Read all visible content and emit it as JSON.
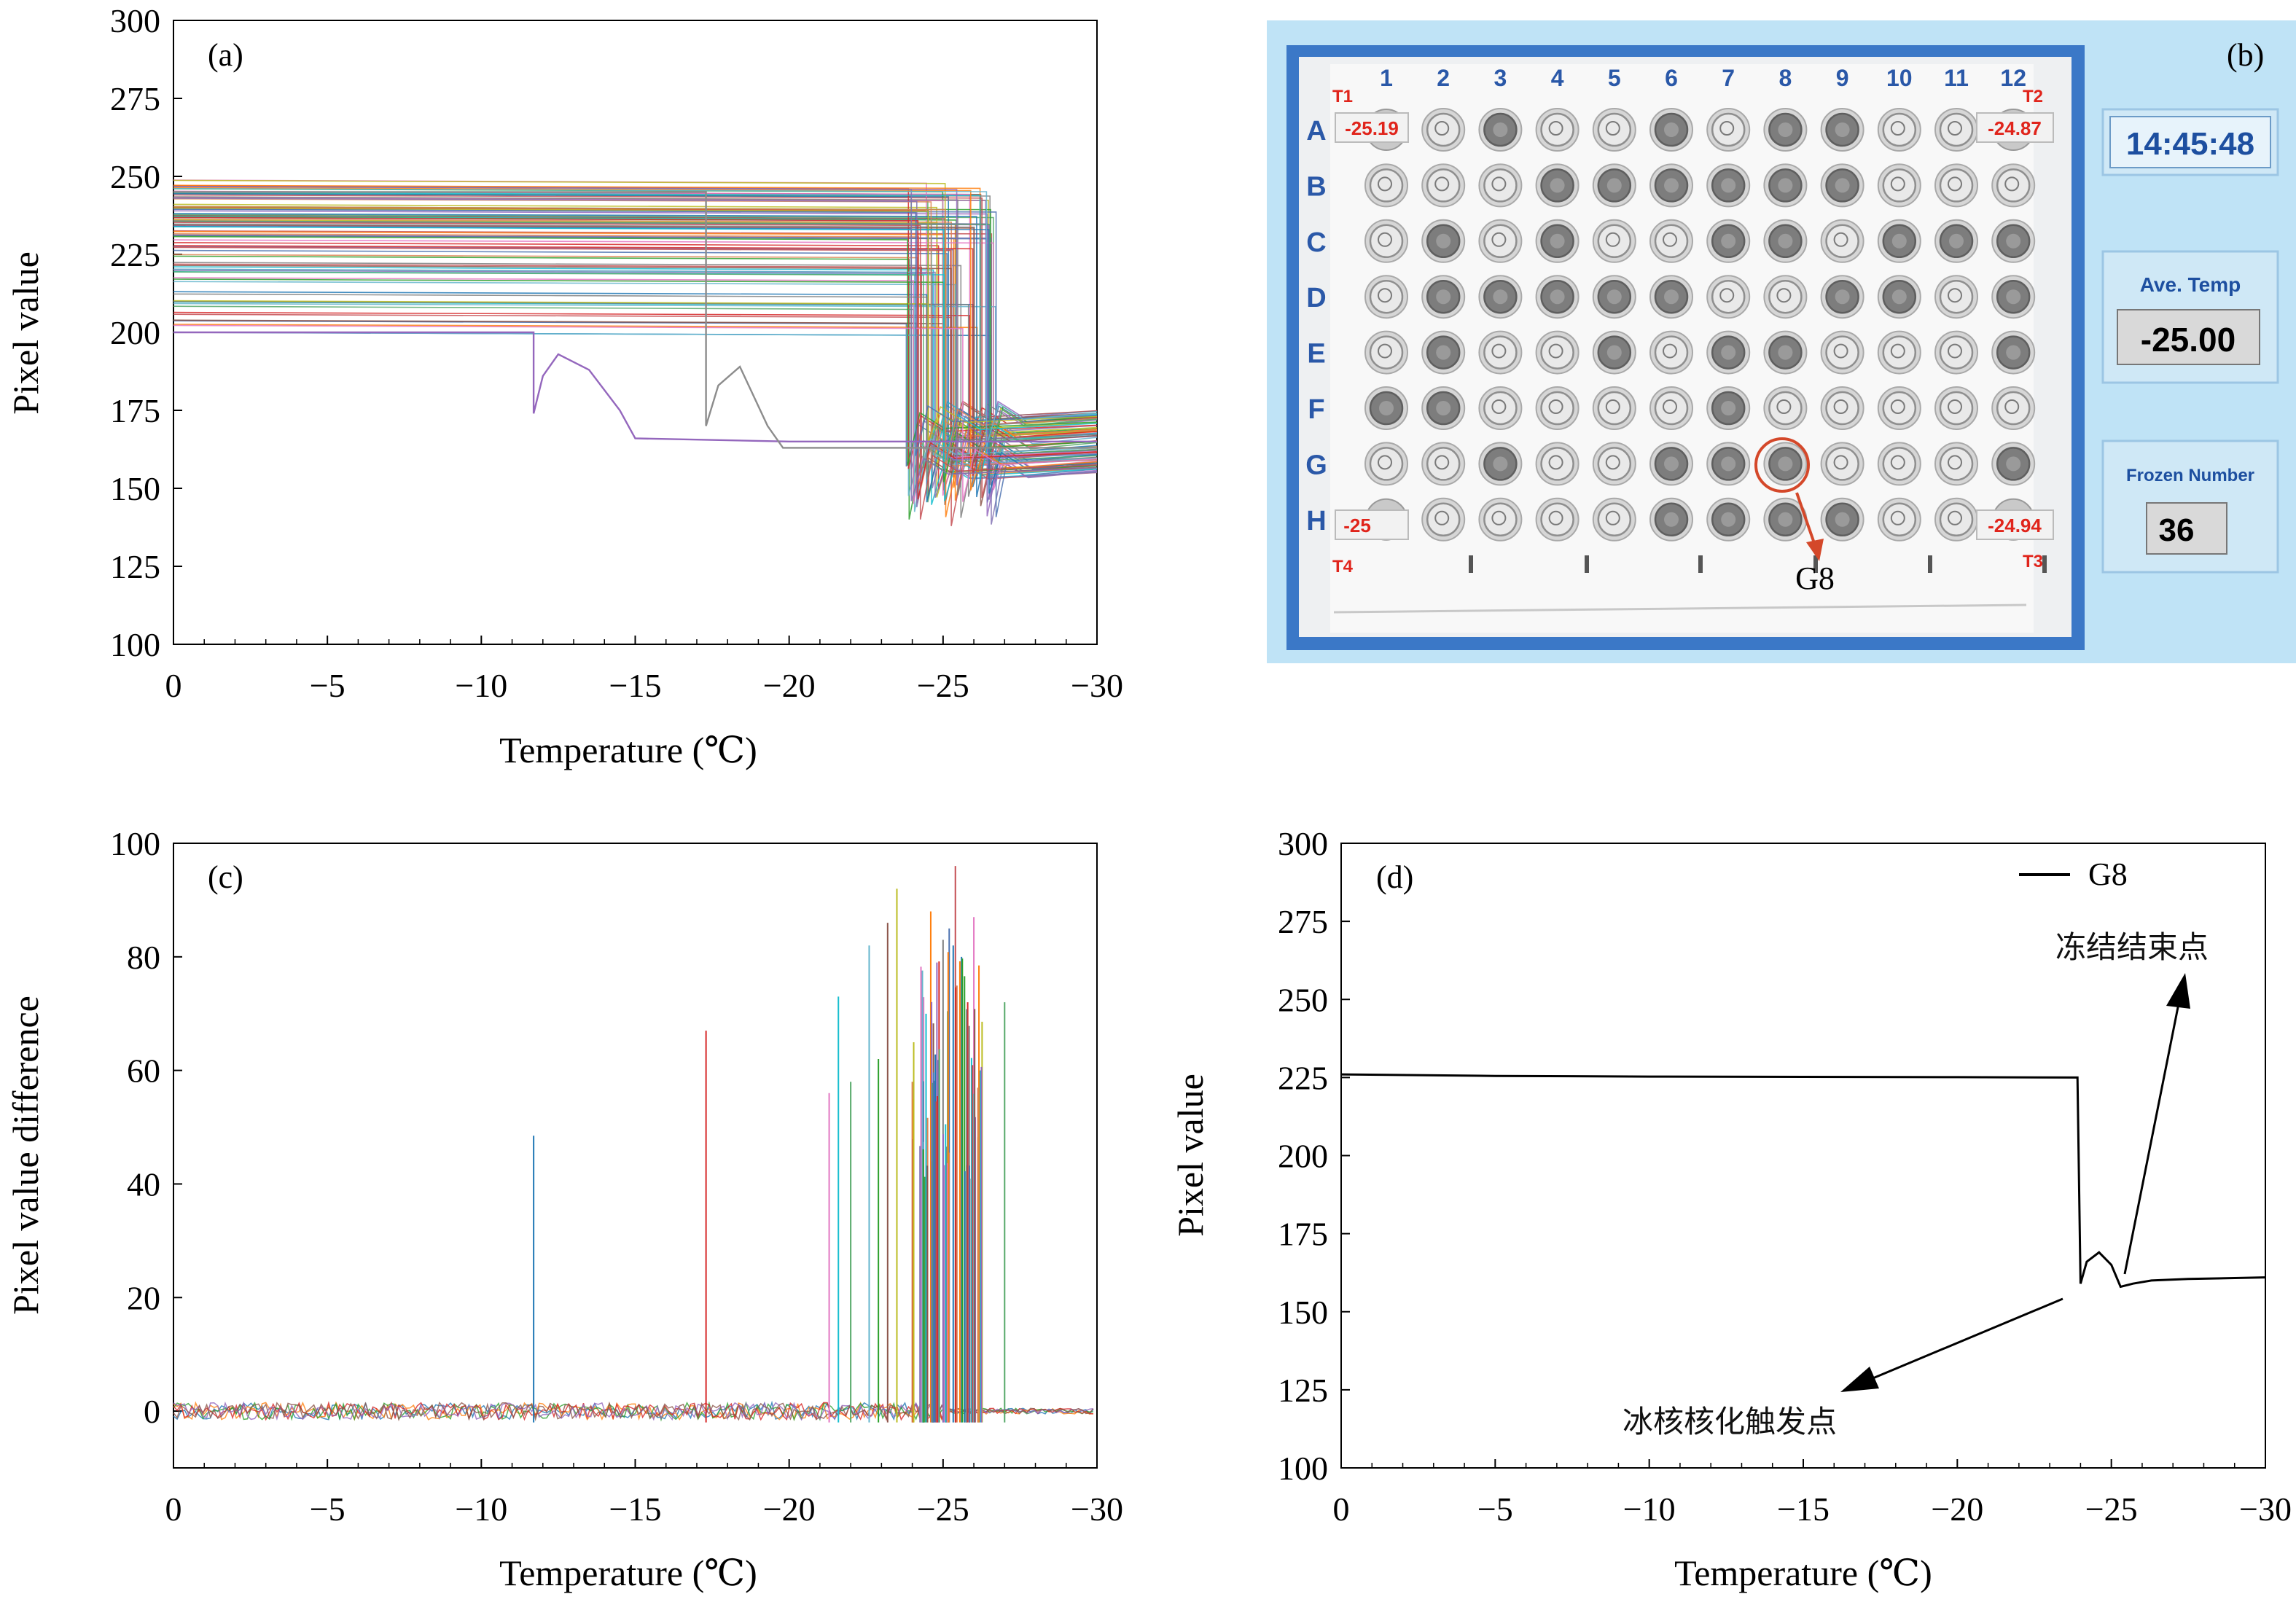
{
  "chart_data": [
    {
      "id": "a",
      "type": "line",
      "panel_label": "(a)",
      "xlabel": "Temperature (℃)",
      "ylabel": "Pixel value",
      "xlim": [
        0,
        -30
      ],
      "ylim": [
        100,
        300
      ],
      "x_ticks": [
        0,
        -5,
        -10,
        -15,
        -20,
        -25,
        -30
      ],
      "x_tick_labels": [
        "0",
        "−5",
        "−10",
        "−15",
        "−20",
        "−25",
        "−30"
      ],
      "y_ticks": [
        100,
        125,
        150,
        175,
        200,
        225,
        250,
        275,
        300
      ],
      "y_tick_labels": [
        "100",
        "125",
        "150",
        "175",
        "200",
        "225",
        "250",
        "275",
        "300"
      ],
      "series_summary": {
        "count": 96,
        "initial_range": [
          200,
          249
        ],
        "freeze_range": [
          -21.2,
          -26.9
        ],
        "final_range": [
          150,
          175
        ]
      },
      "highlight_series": [
        {
          "name": "purple",
          "points": [
            [
              0,
              200
            ],
            [
              -11.7,
              200
            ],
            [
              -11.7,
              174
            ],
            [
              -12.0,
              186
            ],
            [
              -12.5,
              193
            ],
            [
              -13.5,
              188
            ],
            [
              -14.5,
              175
            ],
            [
              -15,
              166
            ],
            [
              -20,
              165
            ],
            [
              -30,
              165
            ]
          ]
        },
        {
          "name": "grey",
          "points": [
            [
              0,
              245
            ],
            [
              -17.3,
              245
            ],
            [
              -17.3,
              170
            ],
            [
              -17.7,
              183
            ],
            [
              -18.4,
              189
            ],
            [
              -19.3,
              170
            ],
            [
              -19.8,
              163
            ],
            [
              -30,
              163
            ]
          ]
        }
      ]
    },
    {
      "id": "c",
      "type": "line",
      "panel_label": "(c)",
      "xlabel": "Temperature (℃)",
      "ylabel": "Pixel value difference",
      "xlim": [
        0,
        -30
      ],
      "ylim": [
        -10,
        100
      ],
      "x_ticks": [
        0,
        -5,
        -10,
        -15,
        -20,
        -25,
        -30
      ],
      "x_tick_labels": [
        "0",
        "−5",
        "−10",
        "−15",
        "−20",
        "−25",
        "−30"
      ],
      "y_ticks": [
        0,
        20,
        40,
        60,
        80,
        100
      ],
      "y_tick_labels": [
        "0",
        "20",
        "40",
        "60",
        "80",
        "100"
      ],
      "spikes": [
        {
          "x": -11.7,
          "y": 48.5
        },
        {
          "x": -17.3,
          "y": 67
        },
        {
          "x": -21.3,
          "y": 56
        },
        {
          "x": -21.6,
          "y": 73
        },
        {
          "x": -22.0,
          "y": 58
        },
        {
          "x": -22.6,
          "y": 82
        },
        {
          "x": -22.9,
          "y": 62
        },
        {
          "x": -23.2,
          "y": 86
        },
        {
          "x": -23.5,
          "y": 92
        },
        {
          "x": -24.0,
          "y": 58
        },
        {
          "x": -24.3,
          "y": 75
        },
        {
          "x": -24.6,
          "y": 88
        },
        {
          "x": -24.8,
          "y": 79
        },
        {
          "x": -25.0,
          "y": 83
        },
        {
          "x": -25.2,
          "y": 85
        },
        {
          "x": -25.4,
          "y": 96
        },
        {
          "x": -25.6,
          "y": 80
        },
        {
          "x": -25.8,
          "y": 72
        },
        {
          "x": -26.0,
          "y": 87
        },
        {
          "x": -26.2,
          "y": 60
        },
        {
          "x": -27.0,
          "y": 72
        }
      ]
    },
    {
      "id": "d",
      "type": "line",
      "panel_label": "(d)",
      "xlabel": "Temperature (℃)",
      "ylabel": "Pixel value",
      "xlim": [
        0,
        -30
      ],
      "ylim": [
        100,
        300
      ],
      "x_ticks": [
        0,
        -5,
        -10,
        -15,
        -20,
        -25,
        -30
      ],
      "x_tick_labels": [
        "0",
        "−5",
        "−10",
        "−15",
        "−20",
        "−25",
        "−30"
      ],
      "y_ticks": [
        100,
        125,
        150,
        175,
        200,
        225,
        250,
        275,
        300
      ],
      "y_tick_labels": [
        "100",
        "125",
        "150",
        "175",
        "200",
        "225",
        "250",
        "275",
        "300"
      ],
      "legend": "G8",
      "series": [
        {
          "name": "G8",
          "points": [
            [
              0,
              226
            ],
            [
              -5,
              225.5
            ],
            [
              -10,
              225.3
            ],
            [
              -15,
              225.2
            ],
            [
              -20,
              225.1
            ],
            [
              -23.9,
              225
            ],
            [
              -24.0,
              159
            ],
            [
              -24.2,
              166
            ],
            [
              -24.6,
              169
            ],
            [
              -25.0,
              165
            ],
            [
              -25.3,
              158
            ],
            [
              -25.7,
              159
            ],
            [
              -26.3,
              160
            ],
            [
              -27.5,
              160.5
            ],
            [
              -30,
              161
            ]
          ]
        }
      ],
      "annotations": {
        "freeze_end": "冻结结束点",
        "nucleation": "冰核核化触发点"
      }
    }
  ],
  "panel_b": {
    "panel_label": "(b)",
    "columns": [
      "1",
      "2",
      "3",
      "4",
      "5",
      "6",
      "7",
      "8",
      "9",
      "10",
      "11",
      "12"
    ],
    "rows": [
      "A",
      "B",
      "C",
      "D",
      "E",
      "F",
      "G",
      "H"
    ],
    "sensors": {
      "t1_label": "T1",
      "t1_value": "-25.19",
      "t2_label": "T2",
      "t2_value": "-24.87",
      "t3_label": "T3",
      "t3_value": "-24.94",
      "t4_label": "T4",
      "t4_value": "-25"
    },
    "highlight_well": "G8",
    "clock": "14:45:48",
    "ave_temp_label": "Ave.  Temp",
    "ave_temp_value": "-25.00",
    "frozen_label": "Frozen Number",
    "frozen_value": "36",
    "colors": {
      "frame_bg": "#bfe3f6",
      "plate_frame": "#3b78c7",
      "label_blue": "#2a58a8",
      "sensor_red": "#e0241b",
      "arrow_red": "#d4482a"
    }
  }
}
